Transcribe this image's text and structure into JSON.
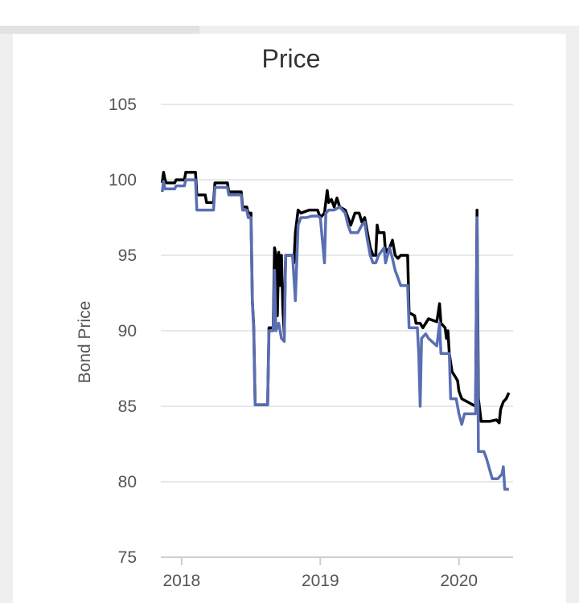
{
  "chart_data": {
    "type": "line",
    "title": "Price",
    "xlabel": "",
    "ylabel": "Bond Price",
    "ylim": [
      75,
      105
    ],
    "yticks": [
      75,
      80,
      85,
      90,
      95,
      100,
      105
    ],
    "xlim": [
      2017.85,
      2020.39
    ],
    "xticks": [
      {
        "value": 2018.0,
        "label": "2018"
      },
      {
        "value": 2019.0,
        "label": "2019"
      },
      {
        "value": 2020.0,
        "label": "2020"
      }
    ],
    "grid": true,
    "series": [
      {
        "color": "#000000",
        "points": [
          [
            2017.86,
            99.8
          ],
          [
            2017.87,
            100.5
          ],
          [
            2017.88,
            100.0
          ],
          [
            2017.89,
            99.8
          ],
          [
            2017.95,
            99.8
          ],
          [
            2017.96,
            100.0
          ],
          [
            2018.02,
            100.0
          ],
          [
            2018.03,
            100.5
          ],
          [
            2018.1,
            100.5
          ],
          [
            2018.11,
            99.0
          ],
          [
            2018.17,
            99.0
          ],
          [
            2018.18,
            98.5
          ],
          [
            2018.23,
            98.5
          ],
          [
            2018.24,
            99.8
          ],
          [
            2018.33,
            99.8
          ],
          [
            2018.34,
            99.2
          ],
          [
            2018.43,
            99.2
          ],
          [
            2018.44,
            98.2
          ],
          [
            2018.47,
            98.2
          ],
          [
            2018.48,
            97.8
          ],
          [
            2018.5,
            97.8
          ],
          [
            2018.51,
            92.0
          ],
          [
            2018.52,
            90.3
          ],
          [
            2018.53,
            85.1
          ],
          [
            2018.62,
            85.1
          ],
          [
            2018.63,
            90.2
          ],
          [
            2018.66,
            90.2
          ],
          [
            2018.67,
            95.5
          ],
          [
            2018.68,
            95.0
          ],
          [
            2018.69,
            91.0
          ],
          [
            2018.7,
            95.2
          ],
          [
            2018.71,
            93.0
          ],
          [
            2018.72,
            95.0
          ],
          [
            2018.73,
            91.5
          ],
          [
            2018.74,
            89.8
          ],
          [
            2018.75,
            95.0
          ],
          [
            2018.8,
            95.0
          ],
          [
            2018.81,
            94.5
          ],
          [
            2018.82,
            96.5
          ],
          [
            2018.84,
            98.0
          ],
          [
            2018.86,
            97.8
          ],
          [
            2018.92,
            98.0
          ],
          [
            2018.98,
            98.0
          ],
          [
            2019.0,
            97.5
          ],
          [
            2019.03,
            97.8
          ],
          [
            2019.05,
            99.3
          ],
          [
            2019.06,
            98.5
          ],
          [
            2019.08,
            98.7
          ],
          [
            2019.1,
            98.2
          ],
          [
            2019.12,
            98.8
          ],
          [
            2019.14,
            98.2
          ],
          [
            2019.18,
            98.0
          ],
          [
            2019.2,
            97.5
          ],
          [
            2019.22,
            97.0
          ],
          [
            2019.25,
            97.8
          ],
          [
            2019.28,
            97.8
          ],
          [
            2019.3,
            97.2
          ],
          [
            2019.32,
            97.5
          ],
          [
            2019.34,
            96.5
          ],
          [
            2019.36,
            95.5
          ],
          [
            2019.38,
            95.0
          ],
          [
            2019.4,
            95.0
          ],
          [
            2019.41,
            97.0
          ],
          [
            2019.42,
            96.5
          ],
          [
            2019.46,
            96.5
          ],
          [
            2019.47,
            95.2
          ],
          [
            2019.5,
            95.5
          ],
          [
            2019.52,
            96.0
          ],
          [
            2019.54,
            95.0
          ],
          [
            2019.56,
            94.8
          ],
          [
            2019.58,
            95.0
          ],
          [
            2019.63,
            95.0
          ],
          [
            2019.64,
            91.2
          ],
          [
            2019.68,
            91.0
          ],
          [
            2019.69,
            90.5
          ],
          [
            2019.72,
            90.5
          ],
          [
            2019.74,
            90.2
          ],
          [
            2019.76,
            90.5
          ],
          [
            2019.78,
            90.8
          ],
          [
            2019.84,
            90.6
          ],
          [
            2019.86,
            91.8
          ],
          [
            2019.87,
            90.5
          ],
          [
            2019.9,
            90.2
          ],
          [
            2019.91,
            89.5
          ],
          [
            2019.92,
            90.0
          ],
          [
            2019.93,
            88.5
          ],
          [
            2019.95,
            87.3
          ],
          [
            2019.97,
            87.0
          ],
          [
            2019.99,
            86.7
          ],
          [
            2020.0,
            86.0
          ],
          [
            2020.02,
            85.5
          ],
          [
            2020.12,
            85.0
          ],
          [
            2020.13,
            98.0
          ],
          [
            2020.14,
            85.5
          ],
          [
            2020.16,
            84.0
          ],
          [
            2020.22,
            84.0
          ],
          [
            2020.27,
            84.1
          ],
          [
            2020.29,
            83.9
          ],
          [
            2020.3,
            84.8
          ],
          [
            2020.32,
            85.3
          ],
          [
            2020.34,
            85.5
          ],
          [
            2020.36,
            85.9
          ]
        ]
      },
      {
        "color": "#5a6eb4",
        "points": [
          [
            2017.86,
            99.2
          ],
          [
            2017.87,
            99.9
          ],
          [
            2017.88,
            99.4
          ],
          [
            2017.95,
            99.4
          ],
          [
            2017.96,
            99.6
          ],
          [
            2018.02,
            99.6
          ],
          [
            2018.03,
            100.0
          ],
          [
            2018.1,
            100.0
          ],
          [
            2018.11,
            98.0
          ],
          [
            2018.23,
            98.0
          ],
          [
            2018.24,
            99.5
          ],
          [
            2018.33,
            99.5
          ],
          [
            2018.34,
            99.0
          ],
          [
            2018.43,
            99.0
          ],
          [
            2018.44,
            98.0
          ],
          [
            2018.47,
            98.0
          ],
          [
            2018.48,
            97.5
          ],
          [
            2018.5,
            97.5
          ],
          [
            2018.51,
            92.0
          ],
          [
            2018.52,
            90.0
          ],
          [
            2018.53,
            85.1
          ],
          [
            2018.62,
            85.1
          ],
          [
            2018.63,
            90.0
          ],
          [
            2018.66,
            90.0
          ],
          [
            2018.67,
            94.0
          ],
          [
            2018.68,
            90.0
          ],
          [
            2018.7,
            90.5
          ],
          [
            2018.72,
            89.5
          ],
          [
            2018.74,
            89.3
          ],
          [
            2018.75,
            95.0
          ],
          [
            2018.8,
            95.0
          ],
          [
            2018.82,
            92.0
          ],
          [
            2018.84,
            97.0
          ],
          [
            2018.86,
            97.5
          ],
          [
            2018.9,
            97.5
          ],
          [
            2018.94,
            97.6
          ],
          [
            2018.98,
            97.6
          ],
          [
            2019.0,
            97.5
          ],
          [
            2019.03,
            94.5
          ],
          [
            2019.04,
            97.8
          ],
          [
            2019.06,
            98.0
          ],
          [
            2019.1,
            98.0
          ],
          [
            2019.14,
            98.2
          ],
          [
            2019.18,
            97.8
          ],
          [
            2019.2,
            97.0
          ],
          [
            2019.22,
            96.5
          ],
          [
            2019.27,
            96.5
          ],
          [
            2019.3,
            97.0
          ],
          [
            2019.32,
            97.2
          ],
          [
            2019.34,
            96.0
          ],
          [
            2019.36,
            95.0
          ],
          [
            2019.38,
            94.5
          ],
          [
            2019.4,
            94.5
          ],
          [
            2019.42,
            95.0
          ],
          [
            2019.46,
            95.5
          ],
          [
            2019.47,
            94.5
          ],
          [
            2019.5,
            95.5
          ],
          [
            2019.52,
            94.8
          ],
          [
            2019.54,
            94.0
          ],
          [
            2019.56,
            93.5
          ],
          [
            2019.58,
            93.0
          ],
          [
            2019.63,
            93.0
          ],
          [
            2019.64,
            90.2
          ],
          [
            2019.7,
            90.2
          ],
          [
            2019.71,
            88.5
          ],
          [
            2019.72,
            85.0
          ],
          [
            2019.73,
            89.5
          ],
          [
            2019.76,
            89.8
          ],
          [
            2019.78,
            89.5
          ],
          [
            2019.84,
            89.0
          ],
          [
            2019.86,
            90.5
          ],
          [
            2019.87,
            88.5
          ],
          [
            2019.93,
            88.5
          ],
          [
            2019.94,
            85.5
          ],
          [
            2019.98,
            85.5
          ],
          [
            2020.0,
            84.5
          ],
          [
            2020.02,
            83.8
          ],
          [
            2020.04,
            84.5
          ],
          [
            2020.12,
            84.5
          ],
          [
            2020.13,
            97.5
          ],
          [
            2020.14,
            82.0
          ],
          [
            2020.18,
            82.0
          ],
          [
            2020.2,
            81.5
          ],
          [
            2020.24,
            80.2
          ],
          [
            2020.28,
            80.2
          ],
          [
            2020.31,
            80.5
          ],
          [
            2020.32,
            81.0
          ],
          [
            2020.33,
            79.5
          ],
          [
            2020.36,
            79.5
          ]
        ]
      }
    ]
  }
}
